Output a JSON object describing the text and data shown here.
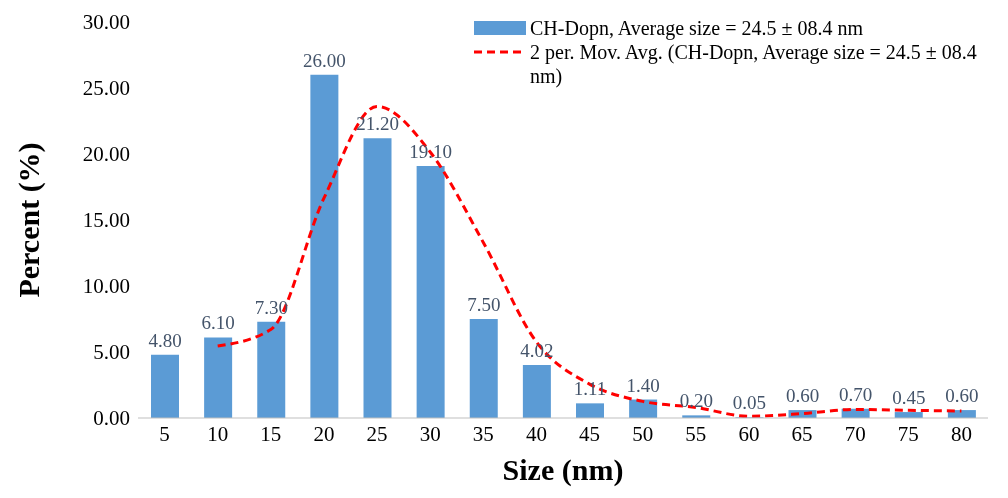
{
  "chart_data": {
    "type": "bar",
    "xlabel": "Size (nm)",
    "ylabel": "Percent (%)",
    "categories": [
      "5",
      "10",
      "15",
      "20",
      "25",
      "30",
      "35",
      "40",
      "45",
      "50",
      "55",
      "60",
      "65",
      "70",
      "75",
      "80"
    ],
    "series": [
      {
        "name": "CH-Dopn, Average size = 24.5 ± 08.4 nm",
        "color": "#5b9bd5",
        "values": [
          4.8,
          6.1,
          7.3,
          26.0,
          21.2,
          19.1,
          7.5,
          4.02,
          1.11,
          1.4,
          0.2,
          0.05,
          0.6,
          0.7,
          0.45,
          0.6
        ],
        "value_labels": [
          "4.80",
          "6.10",
          "7.30",
          "26.00",
          "21.20",
          "19.10",
          "7.50",
          "4.02",
          "1.11",
          "1.40",
          "0.20",
          "0.05",
          "0.60",
          "0.70",
          "0.45",
          "0.60"
        ]
      },
      {
        "name": "2 per. Mov. Avg. (CH-Dopn, Average size = 24.5 ± 08.4 nm)",
        "type": "line",
        "color": "#ff0000",
        "line_style": "dashed",
        "values": [
          null,
          5.45,
          6.7,
          16.65,
          23.6,
          20.15,
          13.3,
          5.76,
          2.57,
          1.26,
          0.8,
          0.13,
          0.33,
          0.65,
          0.58,
          0.53
        ]
      }
    ],
    "ylim": [
      0,
      30
    ],
    "yticks": [
      {
        "value": 0,
        "label": "0.00"
      },
      {
        "value": 5,
        "label": "5.00"
      },
      {
        "value": 10,
        "label": "10.00"
      },
      {
        "value": 15,
        "label": "15.00"
      },
      {
        "value": 20,
        "label": "20.00"
      },
      {
        "value": 25,
        "label": "25.00"
      },
      {
        "value": 30,
        "label": "30.00"
      }
    ],
    "grid": false,
    "legend": "top right",
    "marker": "none"
  }
}
